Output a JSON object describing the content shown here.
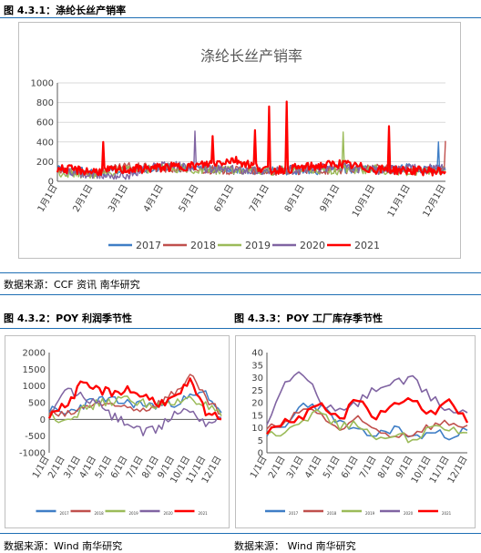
{
  "captions": {
    "fig1": "图 4.3.1：涤纶长丝产销率",
    "fig2": "图 4.3.2：POY 利润季节性",
    "fig3": "图 4.3.3：POY 工厂库存季节性",
    "src1": "数据来源：CCF 资讯 南华研究",
    "src2": "数据来源：Wind 南华研究",
    "src3": "数据来源： Wind 南华研究"
  },
  "colors": {
    "y2017": "#3f7ec6",
    "y2018": "#c0504d",
    "y2019": "#9bbb59",
    "y2020": "#8064a2",
    "y2021": "#ff0000",
    "rule": "#1f6fb4"
  },
  "chart_data": [
    {
      "id": "chart1",
      "type": "line",
      "title": "涤纶长丝产销率",
      "categories": [
        "1月1日",
        "2月1日",
        "3月1日",
        "4月1日",
        "5月1日",
        "6月1日",
        "7月1日",
        "8月1日",
        "9月1日",
        "10月1日",
        "11月1日",
        "12月1日"
      ],
      "yticks": [
        "0",
        "200",
        "400",
        "600",
        "800",
        "1000"
      ],
      "ylim": [
        0,
        1000
      ],
      "grid": true,
      "legend": "bottom",
      "series": [
        {
          "name": "2017",
          "values": [
            120,
            90,
            110,
            130,
            140,
            110,
            120,
            100,
            130,
            120,
            140,
            110
          ]
        },
        {
          "name": "2018",
          "values": [
            100,
            80,
            150,
            130,
            120,
            110,
            100,
            110,
            120,
            130,
            110,
            120
          ]
        },
        {
          "name": "2019",
          "values": [
            90,
            70,
            110,
            140,
            120,
            110,
            100,
            130,
            110,
            120,
            100,
            110
          ]
        },
        {
          "name": "2020",
          "values": [
            110,
            60,
            60,
            180,
            130,
            120,
            110,
            120,
            150,
            110,
            130,
            140
          ]
        },
        {
          "name": "2021",
          "values": [
            130,
            100,
            120,
            140,
            160,
            220,
            110,
            140,
            180,
            120,
            110,
            100
          ]
        }
      ],
      "peaks": [
        {
          "series": "2021",
          "x": 6.0,
          "y": 760
        },
        {
          "series": "2021",
          "x": 6.5,
          "y": 810
        },
        {
          "series": "2021",
          "x": 9.4,
          "y": 560
        },
        {
          "series": "2021",
          "x": 5.6,
          "y": 520
        },
        {
          "series": "2021",
          "x": 1.3,
          "y": 400
        },
        {
          "series": "2020",
          "x": 3.9,
          "y": 510
        },
        {
          "series": "2018",
          "x": 11.5,
          "y": 410
        },
        {
          "series": "2017",
          "x": 10.8,
          "y": 400
        },
        {
          "series": "2019",
          "x": 8.1,
          "y": 500
        },
        {
          "series": "2021",
          "x": 4.4,
          "y": 460
        }
      ]
    },
    {
      "id": "chart2",
      "type": "line",
      "categories": [
        "1/1日",
        "2/1日",
        "3/1日",
        "4/1日",
        "5/1日",
        "6/1日",
        "7/1日",
        "8/1日",
        "9/1日",
        "10/1日",
        "11/1日",
        "12/1日"
      ],
      "yticks": [
        "-1000",
        "-500",
        "0",
        "500",
        "1000",
        "1500",
        "2000"
      ],
      "ylim": [
        -1000,
        2000
      ],
      "grid": false,
      "legend": "bottom",
      "series": [
        {
          "name": "2017",
          "values": [
            300,
            150,
            400,
            600,
            550,
            500,
            450,
            400,
            500,
            650,
            800,
            200
          ]
        },
        {
          "name": "2018",
          "values": [
            200,
            100,
            300,
            500,
            350,
            400,
            300,
            500,
            800,
            1300,
            600,
            150
          ]
        },
        {
          "name": "2019",
          "values": [
            100,
            0,
            250,
            450,
            550,
            600,
            500,
            400,
            450,
            700,
            400,
            100
          ]
        },
        {
          "name": "2020",
          "values": [
            -50,
            900,
            700,
            500,
            100,
            -100,
            -400,
            -300,
            200,
            300,
            -100,
            50
          ]
        },
        {
          "name": "2021",
          "values": [
            150,
            400,
            1000,
            900,
            800,
            900,
            700,
            500,
            600,
            1100,
            200,
            0
          ]
        }
      ]
    },
    {
      "id": "chart3",
      "type": "line",
      "categories": [
        "1/1日",
        "2/1日",
        "3/1日",
        "4/1日",
        "5/1日",
        "6/1日",
        "7/1日",
        "8/1日",
        "9/1日",
        "10/1日",
        "11/1日",
        "12/1日"
      ],
      "yticks": [
        "0",
        "5",
        "10",
        "15",
        "20",
        "25",
        "30",
        "35",
        "40"
      ],
      "ylim": [
        0,
        40
      ],
      "grid": false,
      "legend": "bottom",
      "series": [
        {
          "name": "2017",
          "values": [
            8,
            10,
            20,
            18,
            12,
            8,
            7,
            10,
            6,
            8,
            7,
            9
          ]
        },
        {
          "name": "2018",
          "values": [
            10,
            11,
            18,
            15,
            9,
            13,
            9,
            7,
            8,
            11,
            12,
            11
          ]
        },
        {
          "name": "2019",
          "values": [
            7,
            9,
            14,
            16,
            10,
            12,
            4,
            8,
            5,
            10,
            9,
            8
          ]
        },
        {
          "name": "2020",
          "values": [
            10,
            28,
            32,
            20,
            16,
            20,
            26,
            28,
            29,
            22,
            17,
            16
          ]
        },
        {
          "name": "2021",
          "values": [
            9,
            12,
            15,
            18,
            13,
            22,
            14,
            20,
            21,
            16,
            20,
            12
          ]
        }
      ]
    }
  ]
}
